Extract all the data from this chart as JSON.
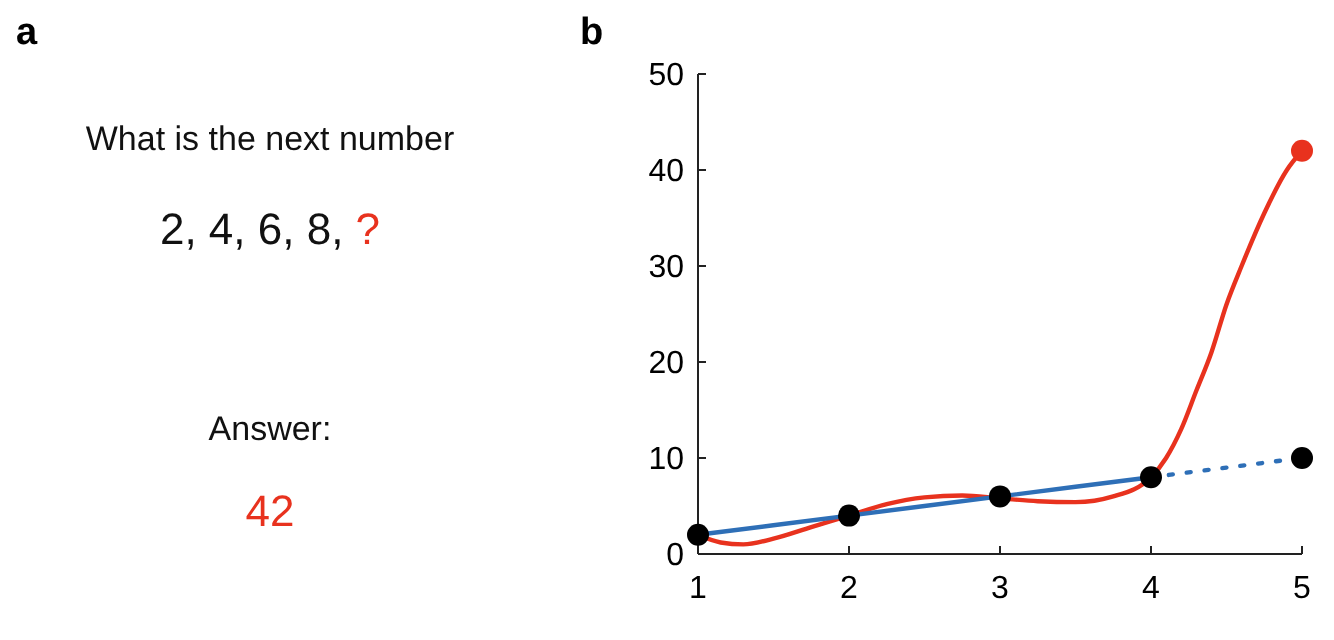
{
  "chart_data": [
    {
      "type": "other",
      "title": "a",
      "annotations": [
        "What is the next number",
        "2, 4, 6, 8,",
        "?",
        "Answer:",
        "42"
      ],
      "colors": [
        "#111111",
        "#111111",
        "#e8321e",
        "#111111",
        "#e8321e"
      ]
    },
    {
      "type": "line",
      "title": "b",
      "xlim": [
        1,
        5
      ],
      "xticks": [
        1,
        2,
        3,
        4,
        5
      ],
      "ylim": [
        0,
        50
      ],
      "yticks": [
        0,
        10,
        20,
        30,
        40,
        50
      ],
      "grid": false,
      "series": [
        {
          "type": "line",
          "color": "#e8321e",
          "marker": "none",
          "x": [
            1,
            1.15,
            1.3,
            1.5,
            1.75,
            2,
            2.25,
            2.5,
            2.75,
            3,
            3.25,
            3.5,
            3.75,
            4,
            4.1,
            4.2,
            4.3,
            4.4,
            4.5,
            4.6,
            4.75,
            4.9,
            5
          ],
          "values": [
            2,
            1.2,
            1,
            1.6,
            2.8,
            4,
            5.2,
            5.9,
            6.1,
            5.8,
            5.5,
            5.4,
            6,
            8,
            10,
            13,
            17,
            21,
            26,
            30,
            35.5,
            40,
            42
          ]
        },
        {
          "type": "line",
          "color": "#2e6fb7",
          "marker": "none",
          "line_style": "solid",
          "x": [
            1,
            2,
            3,
            4
          ],
          "values": [
            2,
            4,
            6,
            8
          ]
        },
        {
          "type": "line",
          "color": "#2e6fb7",
          "marker": "none",
          "line_style": "dotted",
          "x": [
            4,
            5
          ],
          "values": [
            8,
            10
          ]
        },
        {
          "type": "scatter",
          "color": "#000000",
          "marker": "circle",
          "x": [
            1,
            2,
            3,
            4,
            5
          ],
          "values": [
            2,
            4,
            6,
            8,
            10
          ]
        },
        {
          "type": "scatter",
          "color": "#e8321e",
          "marker": "circle",
          "x": [
            5
          ],
          "values": [
            42
          ]
        }
      ]
    }
  ]
}
